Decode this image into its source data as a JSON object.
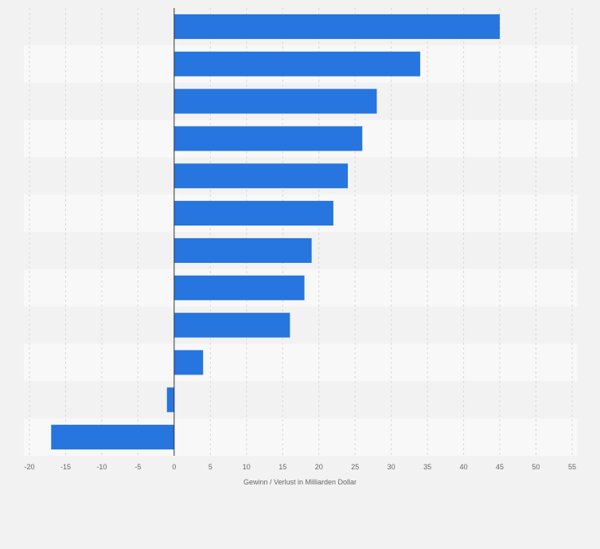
{
  "chart_data": {
    "type": "bar",
    "orientation": "horizontal",
    "categories": [
      "",
      "",
      "",
      "",
      "",
      "",
      "",
      "",
      "",
      "",
      "",
      ""
    ],
    "values": [
      45,
      34,
      28,
      26,
      24,
      22,
      19,
      18,
      16,
      4,
      -1,
      -17
    ],
    "title": "",
    "xlabel": "Gewinn / Verlust in Milliarden Dollar",
    "ylabel": "",
    "xlim": [
      -20,
      55
    ],
    "xticks": [
      -20,
      -15,
      -10,
      -5,
      0,
      5,
      10,
      15,
      20,
      25,
      30,
      35,
      40,
      45,
      50,
      55
    ],
    "grid": true,
    "colors": {
      "bar": "#2775de",
      "background": "#f2f2f2",
      "band_light": "#f8f8f8",
      "band_dark": "#f2f2f2",
      "grid": "#d9d9d9",
      "zero_line": "#333333",
      "axis_text": "#666666"
    }
  }
}
